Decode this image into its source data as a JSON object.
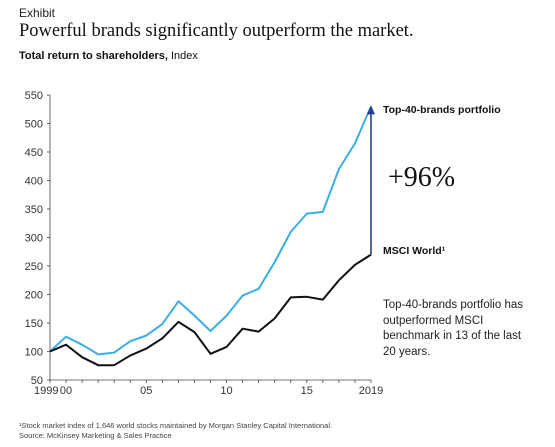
{
  "header": {
    "exhibit_label": "Exhibit",
    "title": "Powerful brands significantly outperform the market.",
    "subtitle_bold": "Total return to shareholders,",
    "subtitle_rest": " Index"
  },
  "chart_data": {
    "type": "line",
    "title": "Powerful brands significantly outperform the market.",
    "ylabel": "Total return to shareholders, Index",
    "xlabel": "",
    "ylim": [
      50,
      550
    ],
    "xlim": [
      1999,
      2019
    ],
    "yticks": [
      50,
      100,
      150,
      200,
      250,
      300,
      350,
      400,
      450,
      500,
      550
    ],
    "xticks": [
      {
        "value": 1999,
        "label": "1999"
      },
      {
        "value": 2000,
        "label": "00"
      },
      {
        "value": 2005,
        "label": "05"
      },
      {
        "value": 2010,
        "label": "10"
      },
      {
        "value": 2015,
        "label": "15"
      },
      {
        "value": 2019,
        "label": "2019"
      }
    ],
    "grid": false,
    "x": [
      1999,
      2000,
      2001,
      2002,
      2003,
      2004,
      2005,
      2006,
      2007,
      2008,
      2009,
      2010,
      2011,
      2012,
      2013,
      2014,
      2015,
      2016,
      2017,
      2018,
      2019
    ],
    "series": [
      {
        "name": "Top-40-brands portfolio",
        "color": "#3aaee8",
        "values": [
          100,
          126,
          112,
          95,
          98,
          118,
          128,
          148,
          188,
          163,
          136,
          163,
          198,
          210,
          257,
          310,
          342,
          345,
          420,
          465,
          530
        ]
      },
      {
        "name": "MSCI World¹",
        "color": "#111111",
        "values": [
          100,
          112,
          90,
          76,
          76,
          93,
          105,
          123,
          152,
          134,
          96,
          108,
          140,
          135,
          158,
          195,
          196,
          191,
          225,
          252,
          270
        ]
      }
    ],
    "annotation": {
      "label": "+96%",
      "from_value": 270,
      "to_value": 530,
      "at_x": 2019,
      "arrow_color": "#2a3d8f"
    }
  },
  "note": "Top-40-brands portfolio has outperformed MSCI benchmark in 13 of the last 20 years.",
  "footnotes": {
    "line1": "¹Stock market index of 1,646 world stocks maintained by Morgan Stanley Capital International.",
    "line2": "Source: McKinsey Marketing & Sales Practice"
  }
}
